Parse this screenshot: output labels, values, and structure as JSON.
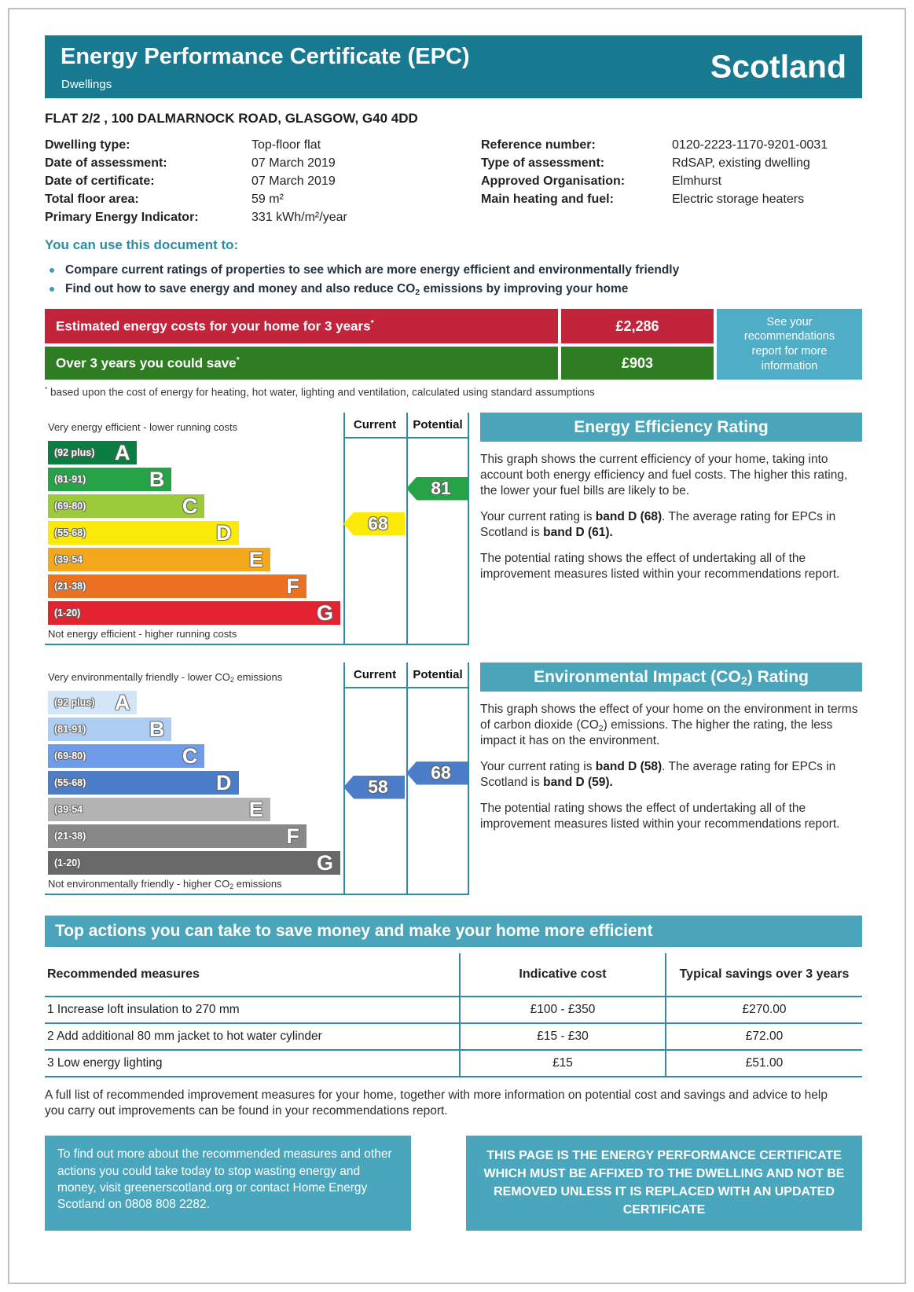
{
  "colors": {
    "header_teal": "#187a90",
    "section_teal": "#4aa5ba",
    "note_teal": "#4fadc6",
    "line_teal": "#2f8ca1",
    "cost_red": "#c2243c",
    "save_green": "#2f7d22",
    "accent_text_teal": "#2e8ca4"
  },
  "header": {
    "title": "Energy Performance Certificate (EPC)",
    "subtitle": "Dwellings",
    "region": "Scotland"
  },
  "address": "FLAT 2/2 , 100 DALMARNOCK ROAD, GLASGOW, G40 4DD",
  "details": {
    "left": [
      {
        "label": "Dwelling type:",
        "value": "Top-floor flat"
      },
      {
        "label": "Date of assessment:",
        "value": "07 March 2019"
      },
      {
        "label": "Date of certificate:",
        "value": "07 March 2019"
      },
      {
        "label": "Total floor area:",
        "value": "59 m²"
      },
      {
        "label": "Primary Energy Indicator:",
        "value": "331 kWh/m²/year"
      }
    ],
    "right": [
      {
        "label": "Reference number:",
        "value": "0120-2223-1170-9201-0031"
      },
      {
        "label": "Type of assessment:",
        "value": "RdSAP, existing dwelling"
      },
      {
        "label": "Approved Organisation:",
        "value": "Elmhurst"
      },
      {
        "label": "Main heating and fuel:",
        "value": "Electric storage heaters"
      }
    ]
  },
  "usage": {
    "heading": "You can use this document to:",
    "bullet1": "Compare current ratings of properties to see which are more energy efficient and environmentally friendly",
    "bullet2": {
      "pre": "Find out how to save energy and money and also reduce CO",
      "sub": "2",
      "post": " emissions by improving your home"
    }
  },
  "costs": {
    "row1": {
      "label": "Estimated energy costs for your home for 3 years",
      "star": "*",
      "value": "£2,286"
    },
    "row2": {
      "label": "Over 3 years you could save",
      "star": "*",
      "value": "£903"
    },
    "note": "See your recommendations report for more information",
    "footnote_star": "*",
    "footnote": " based upon the cost of energy for heating, hot water, lighting and ventilation, calculated using standard assumptions"
  },
  "chart_data": [
    {
      "type": "bar",
      "title": "Energy Efficiency Rating",
      "top_label": "Very energy efficient - lower running costs",
      "bottom_label": "Not energy efficient - higher running costs",
      "columns": [
        "Current",
        "Potential"
      ],
      "bands": [
        {
          "letter": "A",
          "range": "(92 plus)",
          "color": "#0b7d41",
          "width": "30.5%"
        },
        {
          "letter": "B",
          "range": "(81-91)",
          "color": "#27a347",
          "width": "42.3%"
        },
        {
          "letter": "C",
          "range": "(69-80)",
          "color": "#9bcb3a",
          "width": "53.6%"
        },
        {
          "letter": "D",
          "range": "(55-68)",
          "color": "#fbea07",
          "width": "65.2%"
        },
        {
          "letter": "E",
          "range": "(39-54",
          "color": "#f4a91d",
          "width": "76%"
        },
        {
          "letter": "F",
          "range": "(21-38)",
          "color": "#ed7123",
          "width": "88.4%"
        },
        {
          "letter": "G",
          "range": "(1-20)",
          "color": "#e32430",
          "width": "100%"
        }
      ],
      "current": {
        "value": "68",
        "band": "D",
        "color": "#fbea07"
      },
      "potential": {
        "value": "81",
        "band": "B",
        "color": "#27a347"
      }
    },
    {
      "type": "bar",
      "title": "Environmental Impact (CO2) Rating",
      "top_label": {
        "pre": "Very environmentally friendly - lower CO",
        "sub": "2",
        "post": " emissions"
      },
      "bottom_label": {
        "pre": "Not environmentally friendly - higher CO",
        "sub": "2",
        "post": " emissions"
      },
      "columns": [
        "Current",
        "Potential"
      ],
      "bands": [
        {
          "letter": "A",
          "range": "(92 plus)",
          "color": "#d3e6f7",
          "width": "30.5%"
        },
        {
          "letter": "B",
          "range": "(81-91)",
          "color": "#accdf1",
          "width": "42.3%"
        },
        {
          "letter": "C",
          "range": "(69-80)",
          "color": "#6f9ce9",
          "width": "53.6%"
        },
        {
          "letter": "D",
          "range": "(55-68)",
          "color": "#4b7dc8",
          "width": "65.2%"
        },
        {
          "letter": "E",
          "range": "(39-54",
          "color": "#b3b3b3",
          "width": "76%"
        },
        {
          "letter": "F",
          "range": "(21-38)",
          "color": "#888888",
          "width": "88.4%"
        },
        {
          "letter": "G",
          "range": "(1-20)",
          "color": "#696969",
          "width": "100%"
        }
      ],
      "current": {
        "value": "58",
        "band": "D",
        "color": "#4b7dc8"
      },
      "potential": {
        "value": "68",
        "band": "D",
        "color": "#4b7dc8"
      }
    }
  ],
  "panels": [
    {
      "heading": "Energy Efficiency Rating",
      "p1": "This graph shows the current efficiency of your home, taking into account both energy efficiency and fuel costs. The higher this rating, the lower your fuel bills are likely to be.",
      "p2a": "Your current rating is ",
      "p2b": "band D (68)",
      "p2c": ". The average rating for EPCs in Scotland is ",
      "p2d": "band D (61).",
      "p3": "The potential rating shows the effect of undertaking all of the improvement measures listed within your recommendations report."
    },
    {
      "heading_pre": "Environmental Impact (CO",
      "heading_sub": "2",
      "heading_post": ") Rating",
      "p1a": "This graph shows the effect of your home on the environment in terms of carbon dioxide (CO",
      "p1sub": "2",
      "p1b": ") emissions. The higher the rating, the less impact it has on the environment.",
      "p2a": "Your current rating is ",
      "p2b": "band D (58)",
      "p2c": ". The average rating for EPCs in Scotland is ",
      "p2d": "band D (59).",
      "p3": "The potential rating shows the effect of undertaking all of the improvement measures listed within your recommendations report."
    }
  ],
  "actions": {
    "heading": "Top actions you can take to save money and make your home more efficient",
    "headers": [
      "Recommended measures",
      "Indicative cost",
      "Typical savings over 3 years"
    ],
    "rows": [
      {
        "measure": "1 Increase loft insulation to 270 mm",
        "cost": "£100 - £350",
        "saving": "£270.00"
      },
      {
        "measure": "2 Add additional 80 mm jacket to hot water cylinder",
        "cost": "£15 - £30",
        "saving": "£72.00"
      },
      {
        "measure": "3 Low energy lighting",
        "cost": "£15",
        "saving": "£51.00"
      }
    ],
    "note": "A full list of recommended improvement measures for your home, together with more information on potential cost and savings and advice to help you carry out improvements can be found in your recommendations report."
  },
  "footer": {
    "left": "To find out more about the recommended measures and other actions you could take today to stop wasting energy and money, visit greenerscotland.org or contact Home Energy Scotland on 0808 808 2282.",
    "right": "THIS PAGE IS THE ENERGY PERFORMANCE CERTIFICATE WHICH MUST BE AFFIXED TO THE DWELLING AND NOT BE REMOVED UNLESS IT IS REPLACED WITH AN UPDATED CERTIFICATE"
  }
}
